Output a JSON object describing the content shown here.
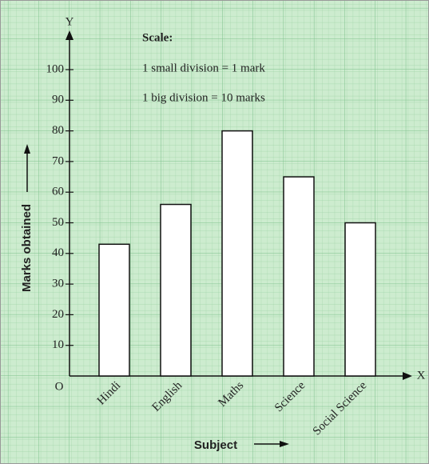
{
  "chart_data": {
    "type": "bar",
    "axis_x_name": "X",
    "axis_y_name": "Y",
    "origin_label": "O",
    "scale_title": "Scale:",
    "scale_lines": [
      "1 small division = 1 mark",
      "1 big division = 10 marks"
    ],
    "ylabel": "Marks obtained",
    "xlabel": "Subject",
    "categories": [
      "Hindi",
      "English",
      "Maths",
      "Science",
      "Social Science"
    ],
    "values": [
      43,
      56,
      80,
      65,
      50
    ],
    "color": "#ffffff",
    "ylim": [
      0,
      100
    ],
    "yticks": [
      10,
      20,
      30,
      40,
      50,
      60,
      70,
      80,
      90,
      100
    ]
  }
}
